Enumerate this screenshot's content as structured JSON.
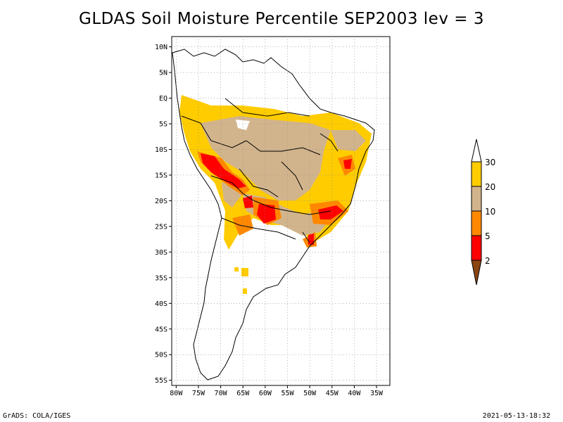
{
  "title": "GLDAS Soil Moisture Percentile SEP2003 lev = 3",
  "footer": {
    "left": "GrADS: COLA/IGES",
    "right": "2021-05-13-18:32"
  },
  "map": {
    "lat_ticks": [
      "10N",
      "5N",
      "EQ",
      "5S",
      "10S",
      "15S",
      "20S",
      "25S",
      "30S",
      "35S",
      "40S",
      "45S",
      "50S",
      "55S"
    ],
    "lon_ticks": [
      "80W",
      "75W",
      "70W",
      "65W",
      "60W",
      "55W",
      "50W",
      "45W",
      "40W",
      "35W"
    ],
    "lat_range": [
      -56,
      12
    ],
    "lon_range": [
      -81,
      -32
    ],
    "grid": true
  },
  "colorbar": {
    "labels": [
      "30",
      "20",
      "10",
      "5",
      "2"
    ],
    "colors": {
      "above30": "#ffffff",
      "b20_30": "#ffcc00",
      "b10_20": "#d2b48c",
      "b5_10": "#ff8800",
      "b2_5": "#ff0000",
      "below2": "#8b4513"
    }
  }
}
